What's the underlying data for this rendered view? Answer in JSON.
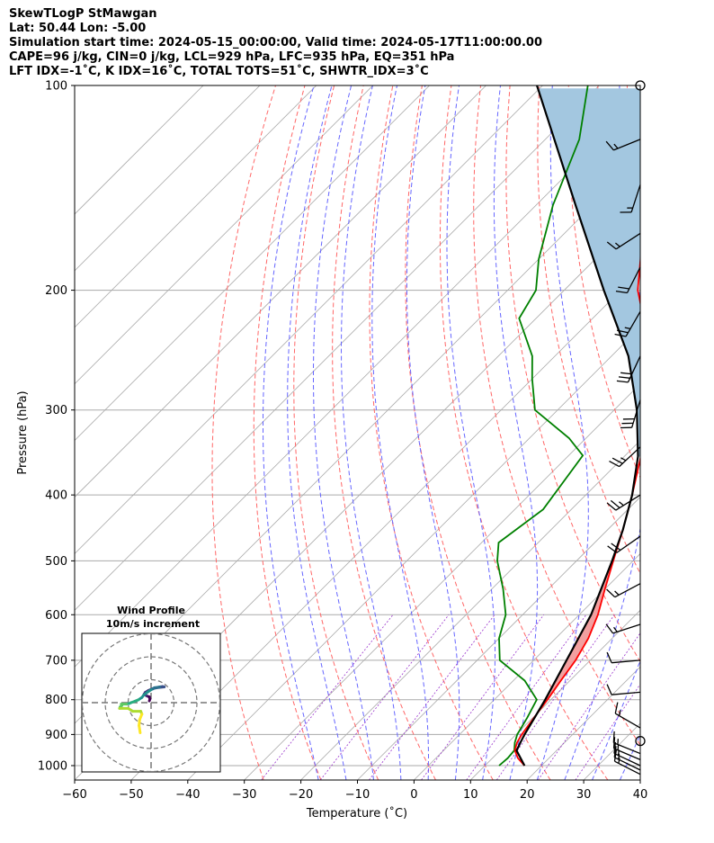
{
  "header": {
    "line1": "SkewTLogP StMawgan",
    "line2": "Lat: 50.44   Lon: -5.00",
    "line3": "Simulation start time: 2024-05-15_00:00:00, Valid time: 2024-05-17T11:00:00.00",
    "line4": "CAPE=96 j/kg, CIN=0 j/kg, LCL=929 hPa, LFC=935 hPa, EQ=351 hPa",
    "line5": "LFT IDX=-1˚C, K IDX=16˚C, TOTAL TOTS=51˚C, SHWTR_IDX=3˚C"
  },
  "chart_data": {
    "type": "line",
    "title": "SkewTLogP StMawgan",
    "xlabel": "Temperature (˚C)",
    "ylabel": "Pressure (hPa)",
    "xlim": [
      -60,
      40
    ],
    "ylim": [
      1050,
      100
    ],
    "x_ticks": [
      "−60",
      "−50",
      "−40",
      "−30",
      "−20",
      "−10",
      "0",
      "10",
      "20",
      "30",
      "40"
    ],
    "y_ticks": [
      {
        "p": 100,
        "label": "100"
      },
      {
        "p": 200,
        "label": "200"
      },
      {
        "p": 300,
        "label": "300"
      },
      {
        "p": 400,
        "label": "400"
      },
      {
        "p": 500,
        "label": "500"
      },
      {
        "p": 600,
        "label": "600"
      },
      {
        "p": 700,
        "label": "700"
      },
      {
        "p": 800,
        "label": "800"
      },
      {
        "p": 900,
        "label": "900"
      },
      {
        "p": 1000,
        "label": "1000"
      }
    ],
    "colors": {
      "temperature": "#ff0000",
      "dewpoint": "#008000",
      "parcel": "#000000",
      "cape_fill": "#a3c7e0",
      "dry_adiabat": "#ff6666",
      "moist_adiabat": "#6666ff",
      "mixing_ratio": "#9933cc",
      "isotherm": "#aaaaaa"
    },
    "series": [
      {
        "name": "temperature",
        "points": [
          [
            1000,
            17
          ],
          [
            975,
            14.5
          ],
          [
            950,
            12.6
          ],
          [
            925,
            11.6
          ],
          [
            900,
            11
          ],
          [
            850,
            10.2
          ],
          [
            800,
            9.4
          ],
          [
            750,
            8.4
          ],
          [
            700,
            7.4
          ],
          [
            650,
            5.8
          ],
          [
            600,
            3.3
          ],
          [
            550,
            0
          ],
          [
            500,
            -3.5
          ],
          [
            450,
            -7.3
          ],
          [
            400,
            -11.8
          ],
          [
            350,
            -17.2
          ],
          [
            300,
            -24.8
          ],
          [
            275,
            -29
          ],
          [
            250,
            -34
          ],
          [
            220,
            -41
          ],
          [
            200,
            -47
          ],
          [
            180,
            -52
          ],
          [
            160,
            -58
          ],
          [
            140,
            -65
          ],
          [
            120,
            -72
          ],
          [
            100,
            -81
          ]
        ]
      },
      {
        "name": "dewpoint",
        "points": [
          [
            1000,
            12.5
          ],
          [
            975,
            12.7
          ],
          [
            950,
            12.5
          ],
          [
            925,
            11.2
          ],
          [
            900,
            10.2
          ],
          [
            850,
            9
          ],
          [
            800,
            7.5
          ],
          [
            750,
            2
          ],
          [
            700,
            -6
          ],
          [
            650,
            -10
          ],
          [
            600,
            -13
          ],
          [
            550,
            -18
          ],
          [
            500,
            -24
          ],
          [
            470,
            -27
          ],
          [
            420,
            -25
          ],
          [
            350,
            -27.5
          ],
          [
            330,
            -33
          ],
          [
            300,
            -44
          ],
          [
            270,
            -50
          ],
          [
            250,
            -54
          ],
          [
            220,
            -63
          ],
          [
            200,
            -65
          ],
          [
            180,
            -70
          ],
          [
            150,
            -77
          ],
          [
            120,
            -84
          ],
          [
            100,
            -92
          ]
        ]
      },
      {
        "name": "parcel",
        "points": [
          [
            1000,
            17
          ],
          [
            950,
            12.9
          ],
          [
            935,
            12.5
          ],
          [
            929,
            12.3
          ],
          [
            900,
            11.5
          ],
          [
            850,
            10.3
          ],
          [
            800,
            9
          ],
          [
            700,
            5.8
          ],
          [
            600,
            2.1
          ],
          [
            500,
            -3.7
          ],
          [
            450,
            -7.3
          ],
          [
            400,
            -11.8
          ],
          [
            351,
            -17.6
          ],
          [
            300,
            -26
          ],
          [
            250,
            -37
          ],
          [
            200,
            -53
          ],
          [
            150,
            -73
          ],
          [
            100,
            -101
          ]
        ]
      }
    ],
    "cape_region": {
      "top_hPa": 100,
      "bottom_hPa": 351,
      "lfc_hPa": 935,
      "lcl_hPa": 929,
      "eq_hPa": 351
    },
    "inset": {
      "title_line1": "Wind Profile",
      "title_line2": "10m/s increment",
      "rings_ms": [
        10,
        20,
        30
      ],
      "hodograph_uv": [
        [
          -1.9,
          -10.5
        ],
        [
          -2.1,
          -8
        ],
        [
          -2,
          -6
        ],
        [
          -1.6,
          -4
        ],
        [
          -1.8,
          -3
        ],
        [
          -3.2,
          -3
        ],
        [
          -4,
          -2
        ],
        [
          -5.5,
          -2
        ],
        [
          -5.4,
          -1.5
        ],
        [
          -5.1,
          -1
        ],
        [
          -5.2,
          -0.5
        ],
        [
          -4.3,
          -0.5
        ],
        [
          -3.8,
          -0.3
        ],
        [
          -3.5,
          0
        ],
        [
          -2.8,
          0.5
        ],
        [
          -2.2,
          1
        ],
        [
          -1.6,
          1.8
        ],
        [
          -1.3,
          2.6
        ],
        [
          -0.8,
          3.4
        ],
        [
          0,
          4.5
        ],
        [
          0.3,
          4.8
        ],
        [
          0.6,
          5.2
        ],
        [
          1,
          5.3
        ],
        [
          1.5,
          5.5
        ],
        [
          2,
          5.6
        ],
        [
          2.3,
          5.5
        ],
        [
          1,
          5.2
        ],
        [
          0.3,
          4.9
        ],
        [
          -0.5,
          4.2
        ],
        [
          -1,
          3.6
        ],
        [
          -1.2,
          3
        ],
        [
          -0.8,
          2.4
        ],
        [
          -0.3,
          2
        ],
        [
          -0.2,
          1.2
        ],
        [
          -0.3,
          0.6
        ]
      ]
    },
    "barbs": [
      {
        "p": 100,
        "speed_kt": 0,
        "dir_deg": 0
      },
      {
        "p": 120,
        "speed_kt": 15,
        "dir_deg": 248
      },
      {
        "p": 140,
        "speed_kt": 15,
        "dir_deg": 198
      },
      {
        "p": 165,
        "speed_kt": 15,
        "dir_deg": 237
      },
      {
        "p": 185,
        "speed_kt": 20,
        "dir_deg": 207
      },
      {
        "p": 215,
        "speed_kt": 25,
        "dir_deg": 210
      },
      {
        "p": 250,
        "speed_kt": 30,
        "dir_deg": 205
      },
      {
        "p": 290,
        "speed_kt": 30,
        "dir_deg": 197
      },
      {
        "p": 340,
        "speed_kt": 25,
        "dir_deg": 227
      },
      {
        "p": 400,
        "speed_kt": 25,
        "dir_deg": 238
      },
      {
        "p": 460,
        "speed_kt": 20,
        "dir_deg": 235
      },
      {
        "p": 540,
        "speed_kt": 15,
        "dir_deg": 242
      },
      {
        "p": 620,
        "speed_kt": 15,
        "dir_deg": 252
      },
      {
        "p": 700,
        "speed_kt": 10,
        "dir_deg": 265
      },
      {
        "p": 780,
        "speed_kt": 10,
        "dir_deg": 265
      },
      {
        "p": 880,
        "speed_kt": 15,
        "dir_deg": 300
      },
      {
        "p": 920,
        "speed_kt": 0,
        "dir_deg": 0
      },
      {
        "p": 960,
        "speed_kt": 15,
        "dir_deg": 292
      },
      {
        "p": 980,
        "speed_kt": 15,
        "dir_deg": 293
      },
      {
        "p": 1000,
        "speed_kt": 15,
        "dir_deg": 295
      },
      {
        "p": 1015,
        "speed_kt": 15,
        "dir_deg": 296
      },
      {
        "p": 1030,
        "speed_kt": 15,
        "dir_deg": 297
      }
    ]
  }
}
